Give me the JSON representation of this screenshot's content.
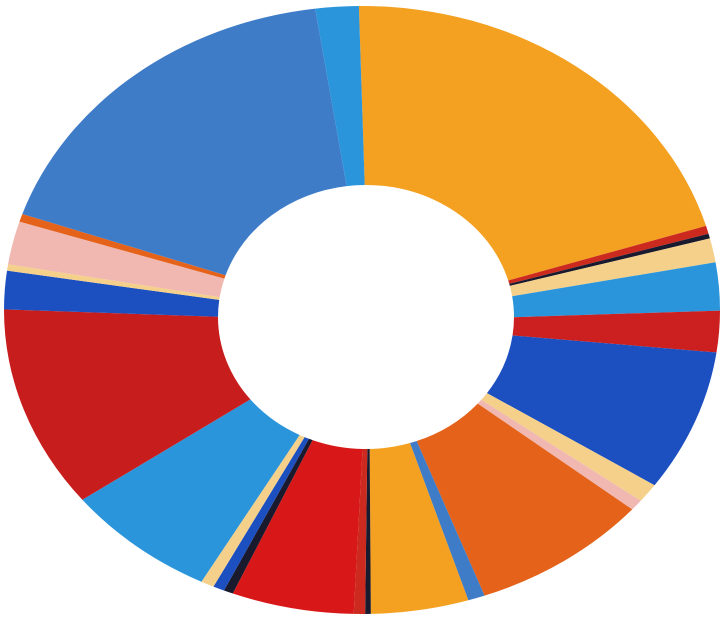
{
  "chart_data": {
    "type": "pie",
    "variant": "donut",
    "title": "",
    "legend": "none",
    "start_angle_deg": -0.5,
    "direction": "clockwise",
    "slices": [
      {
        "value": 24.4,
        "color": "#f4a020"
      },
      {
        "value": 0.5,
        "color": "#cc2a1e"
      },
      {
        "value": 0.3,
        "color": "#1a1a2e"
      },
      {
        "value": 1.5,
        "color": "#f5d08a"
      },
      {
        "value": 3.0,
        "color": "#2b95dc"
      },
      {
        "value": 2.6,
        "color": "#cc1f1f"
      },
      {
        "value": 8.9,
        "color": "#1c4fc0"
      },
      {
        "value": 1.2,
        "color": "#f5d08a"
      },
      {
        "value": 0.7,
        "color": "#f0b8b0"
      },
      {
        "value": 9.5,
        "color": "#e4621a"
      },
      {
        "value": 0.9,
        "color": "#3f7cc8"
      },
      {
        "value": 5.2,
        "color": "#f4a020"
      },
      {
        "value": 0.3,
        "color": "#1a1a2e"
      },
      {
        "value": 0.6,
        "color": "#cc2a1e"
      },
      {
        "value": 6.5,
        "color": "#d81818"
      },
      {
        "value": 0.5,
        "color": "#1a1a2e"
      },
      {
        "value": 0.6,
        "color": "#1c4fc0"
      },
      {
        "value": 0.7,
        "color": "#f5d08a"
      },
      {
        "value": 8.1,
        "color": "#2b95dc"
      },
      {
        "value": 12.7,
        "color": "#c81d1d"
      },
      {
        "value": 2.4,
        "color": "#1c4fc0"
      },
      {
        "value": 0.4,
        "color": "#f5d08a"
      },
      {
        "value": 2.7,
        "color": "#f0b8b0"
      },
      {
        "value": 0.5,
        "color": "#e4621a"
      },
      {
        "value": 21.0,
        "color": "#3f7cc8"
      },
      {
        "value": 2.3,
        "color": "#2b95dc"
      }
    ]
  }
}
